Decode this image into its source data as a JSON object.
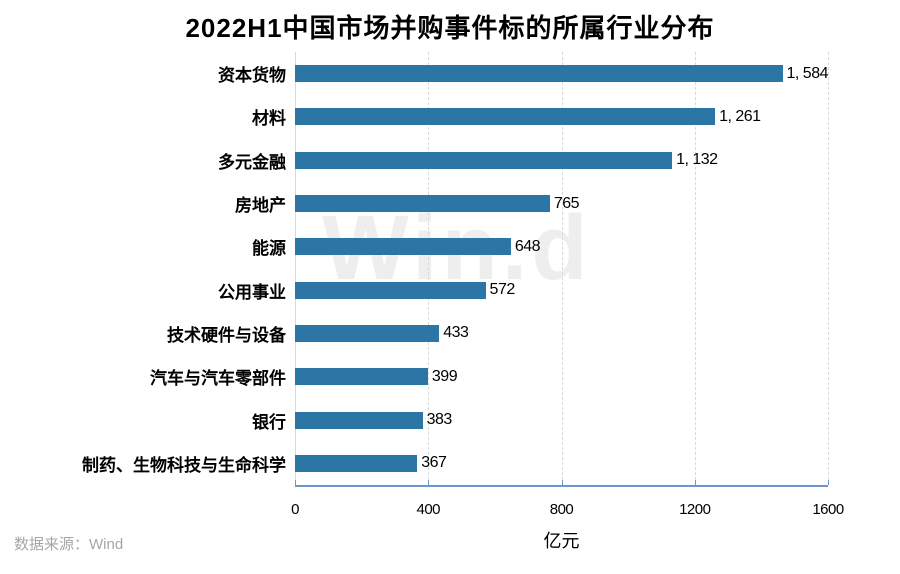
{
  "title": "2022H1中国市场并购事件标的所属行业分布",
  "watermark": "Win.d",
  "source": "数据来源：Wind",
  "colors": {
    "bar": "#2b76a4",
    "axis_line": "#6e95c9",
    "gridline": "#d9d9d9",
    "source_text": "#a6a6a6",
    "watermark_gray": "#ededed"
  },
  "chart_data": {
    "type": "bar",
    "orientation": "horizontal",
    "title": "2022H1中国市场并购事件标的所属行业分布",
    "categories": [
      "资本货物",
      "材料",
      "多元金融",
      "房地产",
      "能源",
      "公用事业",
      "技术硬件与设备",
      "汽车与汽车零部件",
      "银行",
      "制药、生物科技与生命科学"
    ],
    "values": [
      1584,
      1261,
      1132,
      765,
      648,
      572,
      433,
      399,
      383,
      367
    ],
    "value_labels": [
      "1, 584",
      "1, 261",
      "1, 132",
      "765",
      "648",
      "572",
      "433",
      "399",
      "383",
      "367"
    ],
    "xlabel": "亿元",
    "ylabel": "",
    "xlim": [
      0,
      1600
    ],
    "x_ticks": [
      0,
      400,
      800,
      1200,
      1600
    ],
    "x_tick_labels": [
      "0",
      "400",
      "800",
      "1200",
      "1600"
    ],
    "grid": "vertical-dashed",
    "legend": "none",
    "sort": "descending"
  }
}
